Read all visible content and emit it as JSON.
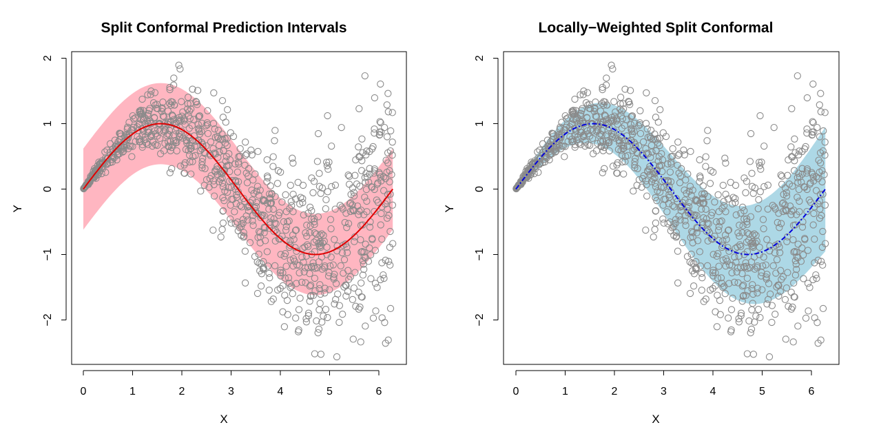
{
  "chart_data": [
    {
      "type": "scatter",
      "panel": "left",
      "title": "Split Conformal Prediction Intervals",
      "xlabel": "X",
      "ylabel": "Y",
      "xlim": [
        0,
        6.283
      ],
      "ylim": [
        -2.5,
        2.0
      ],
      "x_ticks": [
        0,
        1,
        2,
        3,
        4,
        5,
        6
      ],
      "y_ticks": [
        -2,
        -1,
        0,
        1,
        2
      ],
      "x_tick_labels": [
        "0",
        "1",
        "2",
        "3",
        "4",
        "5",
        "6"
      ],
      "y_tick_labels": [
        "−2",
        "−1",
        "0",
        "1",
        "2"
      ],
      "colors": {
        "band": "#ffb6c1",
        "fit": "#e00000",
        "points": "#8a8a8a"
      },
      "fit": {
        "function": "sin(x)",
        "line_style": "solid"
      },
      "band": {
        "kind": "constant",
        "half_width": 0.62
      },
      "scatter": {
        "n_points": 1000,
        "x_range": [
          0,
          6.283
        ],
        "mean": "sin(x)",
        "noise_sd": "0.5*x/pi"
      }
    },
    {
      "type": "scatter",
      "panel": "right",
      "title": "Locally−Weighted Split Conformal",
      "xlabel": "X",
      "ylabel": "Y",
      "xlim": [
        0,
        6.283
      ],
      "ylim": [
        -2.5,
        2.0
      ],
      "x_ticks": [
        0,
        1,
        2,
        3,
        4,
        5,
        6
      ],
      "y_ticks": [
        -2,
        -1,
        0,
        1,
        2
      ],
      "x_tick_labels": [
        "0",
        "1",
        "2",
        "3",
        "4",
        "5",
        "6"
      ],
      "y_tick_labels": [
        "−2",
        "−1",
        "0",
        "1",
        "2"
      ],
      "colors": {
        "band": "#add8e6",
        "fit": "#0000dd",
        "points": "#8a8a8a"
      },
      "fit": {
        "function": "sin(x)",
        "line_style": "dash-dot"
      },
      "band": {
        "kind": "locally-weighted",
        "half_width_min": 0.02,
        "half_width_max": 0.95
      },
      "scatter": {
        "n_points": 1000,
        "x_range": [
          0,
          6.283
        ],
        "mean": "sin(x)",
        "noise_sd": "0.5*x/pi"
      }
    }
  ]
}
